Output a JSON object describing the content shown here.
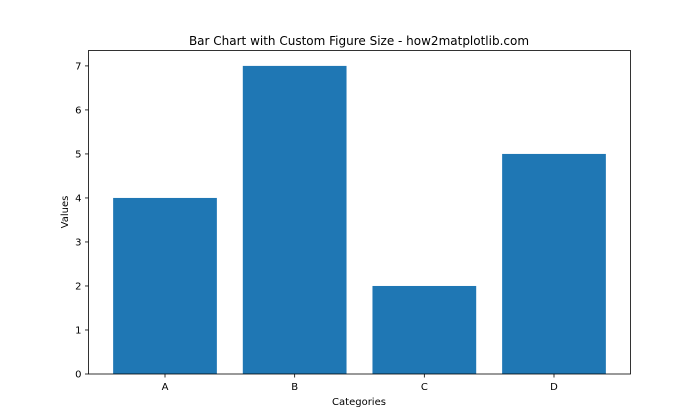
{
  "chart_data": {
    "type": "bar",
    "title": "Bar Chart with Custom Figure Size - how2matplotlib.com",
    "xlabel": "Categories",
    "ylabel": "Values",
    "categories": [
      "A",
      "B",
      "C",
      "D"
    ],
    "values": [
      4,
      7,
      2,
      5
    ],
    "ylim": [
      0,
      7.35
    ],
    "yticks": [
      0,
      1,
      2,
      3,
      4,
      5,
      6,
      7
    ],
    "bar_color": "#1f77b4",
    "grid": false
  }
}
